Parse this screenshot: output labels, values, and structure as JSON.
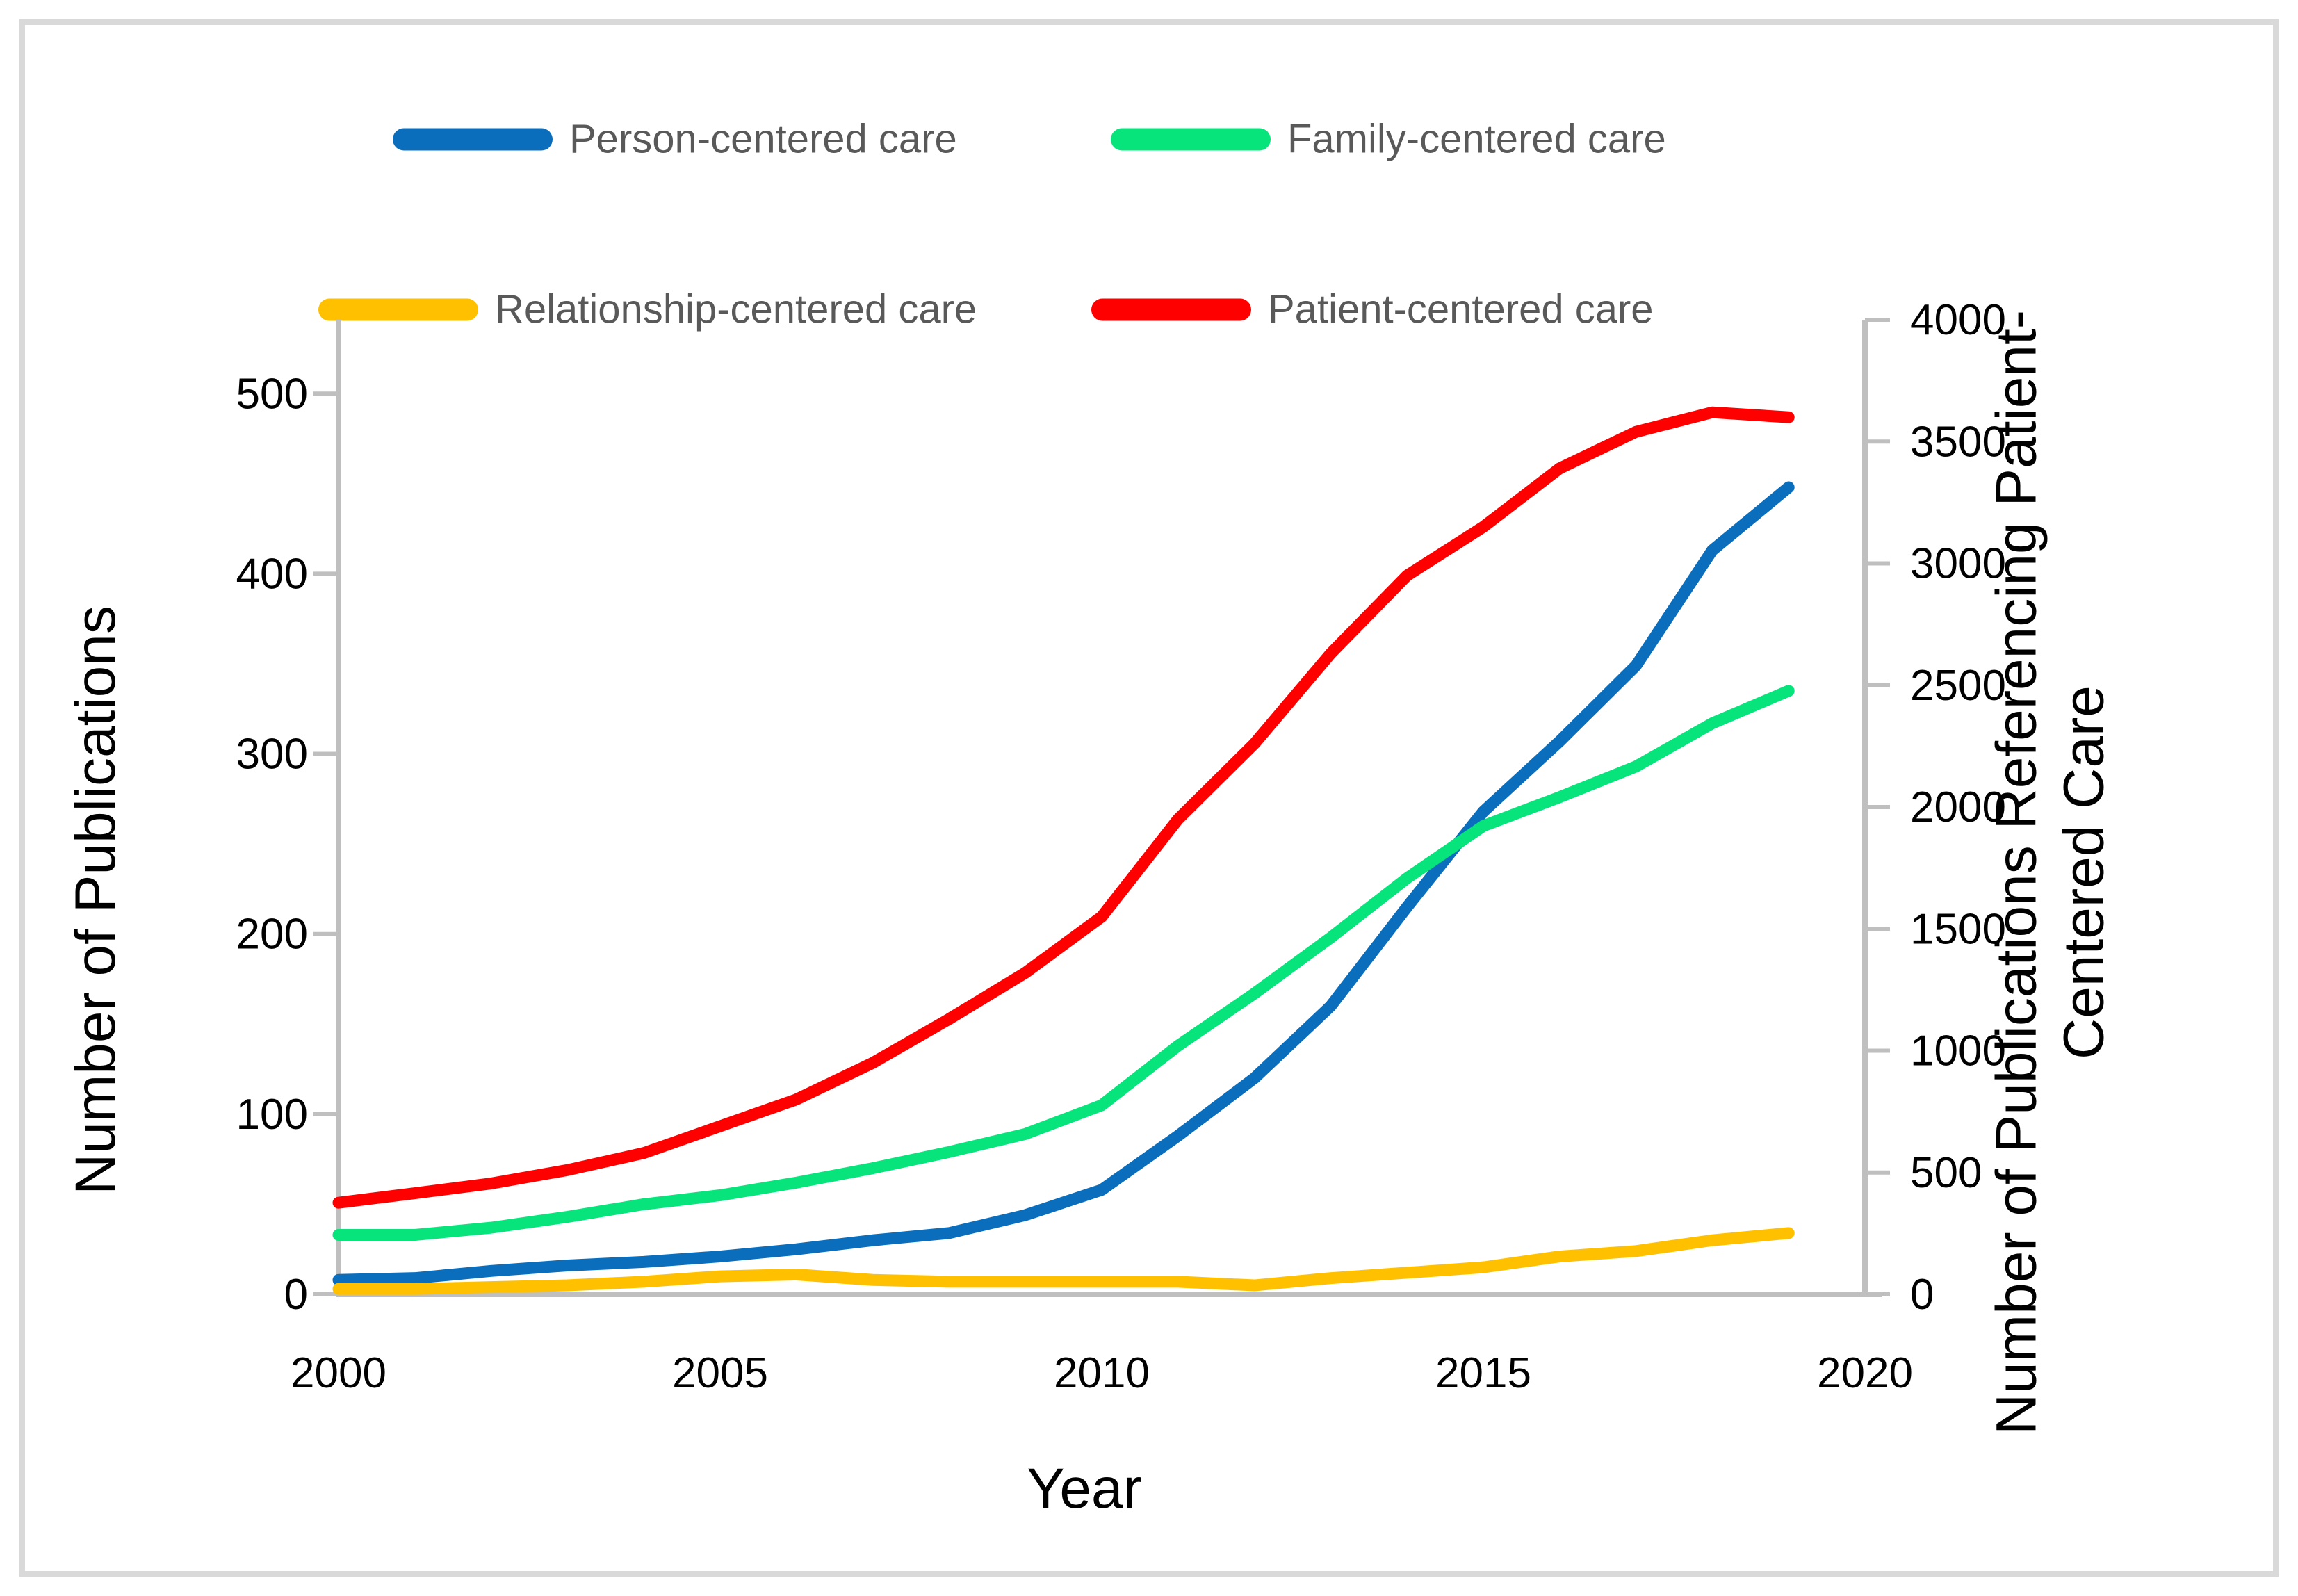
{
  "colors": {
    "person": "#0a6ebd",
    "family": "#06e47b",
    "relationship": "#ffc000",
    "patient": "#fe0000",
    "axis_line": "#bfbfbf",
    "tick_text": "#000000",
    "legend_text": "#595959",
    "page_border": "#d9d9d9",
    "background": "#ffffff"
  },
  "chart_data": {
    "type": "line",
    "title": "",
    "xlabel": "Year",
    "ylabel_left": "Number of Publications",
    "ylabel_right": "Number of Publications Referencing Patient-Centered Care",
    "ylabel_right_lines": [
      "Number of Publications Referencing Patient-",
      "Centered Care"
    ],
    "legend_position": "top",
    "grid": false,
    "x": [
      2000,
      2001,
      2002,
      2003,
      2004,
      2005,
      2006,
      2007,
      2008,
      2009,
      2010,
      2011,
      2012,
      2013,
      2014,
      2015,
      2016,
      2017,
      2018,
      2019
    ],
    "x_ticks": [
      2000,
      2005,
      2010,
      2015,
      2020
    ],
    "x_range": [
      2000,
      2020
    ],
    "y_axis_left": {
      "ticks": [
        0,
        100,
        200,
        300,
        400,
        500
      ],
      "range": [
        0,
        541
      ]
    },
    "y_axis_right": {
      "ticks": [
        0,
        500,
        1000,
        1500,
        2000,
        2500,
        3000,
        3500,
        4000
      ],
      "range": [
        0,
        4000
      ]
    },
    "series": [
      {
        "name": "Person-centered care",
        "axis": "left",
        "color": "#0a6ebd",
        "values": [
          8,
          9,
          13,
          16,
          18,
          21,
          25,
          30,
          34,
          44,
          58,
          88,
          120,
          160,
          215,
          268,
          307,
          349,
          413,
          448
        ]
      },
      {
        "name": "Family-centered care",
        "axis": "left",
        "color": "#06e47b",
        "values": [
          33,
          33,
          37,
          43,
          50,
          55,
          62,
          70,
          79,
          89,
          105,
          138,
          167,
          198,
          231,
          260,
          276,
          293,
          317,
          335
        ]
      },
      {
        "name": "Relationship-centered care",
        "axis": "left",
        "color": "#ffc000",
        "values": [
          3,
          3,
          4,
          5,
          7,
          10,
          11,
          8,
          7,
          7,
          7,
          7,
          5,
          9,
          12,
          15,
          21,
          24,
          30,
          34
        ]
      },
      {
        "name": "Patient-centered care",
        "axis": "right",
        "color": "#fe0000",
        "values": [
          376,
          415,
          455,
          510,
          580,
          690,
          800,
          950,
          1130,
          1320,
          1550,
          1950,
          2260,
          2630,
          2950,
          3150,
          3390,
          3540,
          3620,
          3600
        ]
      }
    ]
  }
}
